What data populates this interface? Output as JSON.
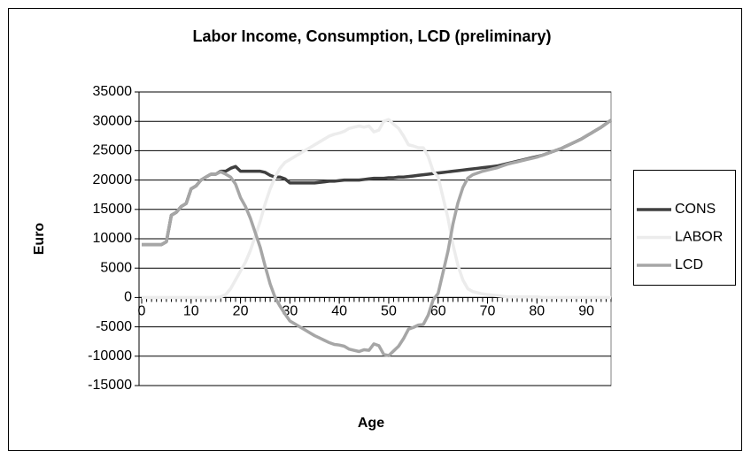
{
  "chart_data": {
    "type": "line",
    "title": "Labor Income, Consumption, LCD (preliminary)",
    "x_label": "Age",
    "y_label": "Euro",
    "x": [
      0,
      1,
      2,
      3,
      4,
      5,
      6,
      7,
      8,
      9,
      10,
      11,
      12,
      13,
      14,
      15,
      16,
      17,
      18,
      19,
      20,
      21,
      22,
      23,
      24,
      25,
      26,
      27,
      28,
      29,
      30,
      31,
      32,
      33,
      34,
      35,
      36,
      37,
      38,
      39,
      40,
      41,
      42,
      43,
      44,
      45,
      46,
      47,
      48,
      49,
      50,
      51,
      52,
      53,
      54,
      55,
      56,
      57,
      58,
      59,
      60,
      61,
      62,
      63,
      64,
      65,
      66,
      67,
      68,
      69,
      70,
      71,
      72,
      73,
      74,
      75,
      76,
      77,
      78,
      79,
      80,
      81,
      82,
      83,
      84,
      85,
      86,
      87,
      88,
      89,
      90,
      91,
      92,
      93,
      94,
      95
    ],
    "xlim": [
      0,
      95
    ],
    "xticks": [
      0,
      10,
      20,
      30,
      40,
      50,
      60,
      70,
      80,
      90
    ],
    "ylim": [
      -15000,
      35000
    ],
    "yticks": [
      -15000,
      -10000,
      -5000,
      0,
      5000,
      10000,
      15000,
      20000,
      25000,
      30000,
      35000
    ],
    "grid": true,
    "legend": "right",
    "series": [
      {
        "name": "CONS",
        "color": "#404040",
        "values": [
          9000,
          9000,
          9000,
          9000,
          9000,
          9500,
          14000,
          14500,
          15500,
          16000,
          18500,
          19000,
          20000,
          20500,
          21000,
          21000,
          21500,
          21500,
          22000,
          22300,
          21500,
          21500,
          21500,
          21500,
          21500,
          21300,
          20800,
          20500,
          20500,
          20200,
          19500,
          19500,
          19500,
          19500,
          19500,
          19500,
          19600,
          19700,
          19800,
          19800,
          19900,
          20000,
          20000,
          20000,
          20000,
          20100,
          20200,
          20300,
          20300,
          20300,
          20400,
          20400,
          20500,
          20500,
          20600,
          20700,
          20800,
          20900,
          21000,
          21100,
          21200,
          21300,
          21400,
          21500,
          21600,
          21700,
          21800,
          21900,
          22000,
          22100,
          22200,
          22300,
          22400,
          22600,
          22800,
          23000,
          23200,
          23400,
          23600,
          23800,
          24000,
          24200,
          24500,
          24800,
          25100,
          25400,
          25800,
          26200,
          26600,
          27000,
          27500,
          28000,
          28500,
          29000,
          29600,
          30200
        ]
      },
      {
        "name": "LABOR",
        "color": "#ececec",
        "values": [
          0,
          0,
          0,
          0,
          0,
          0,
          0,
          0,
          0,
          0,
          0,
          0,
          0,
          0,
          0,
          0,
          100,
          500,
          1500,
          3000,
          4500,
          6000,
          8000,
          10500,
          13000,
          16000,
          18500,
          20500,
          22000,
          23000,
          23500,
          24000,
          24500,
          25000,
          25500,
          26000,
          26500,
          27000,
          27500,
          27800,
          28000,
          28300,
          28800,
          29000,
          29200,
          29000,
          29200,
          28200,
          28500,
          30000,
          30300,
          29500,
          28800,
          27500,
          26000,
          25800,
          25500,
          25500,
          24000,
          21500,
          20500,
          17000,
          13500,
          9000,
          5500,
          3000,
          1500,
          1000,
          800,
          600,
          500,
          400,
          300,
          200,
          100,
          100,
          100,
          100,
          100,
          100,
          100,
          0,
          0,
          0,
          0,
          0,
          0,
          0,
          0,
          0,
          0,
          0,
          0,
          0,
          0,
          0
        ]
      },
      {
        "name": "LCD",
        "color": "#a6a6a6",
        "values": [
          9000,
          9000,
          9000,
          9000,
          9000,
          9500,
          14000,
          14500,
          15500,
          16000,
          18500,
          19000,
          20000,
          20500,
          21000,
          21000,
          21400,
          21000,
          20500,
          19300,
          17000,
          15500,
          13500,
          11000,
          8500,
          5300,
          2300,
          0,
          -1500,
          -2800,
          -4000,
          -4500,
          -5000,
          -5500,
          -6000,
          -6500,
          -6900,
          -7300,
          -7700,
          -8000,
          -8100,
          -8300,
          -8800,
          -9000,
          -9200,
          -8900,
          -9000,
          -7900,
          -8200,
          -9700,
          -9900,
          -9100,
          -8300,
          -7000,
          -5400,
          -5100,
          -4700,
          -4600,
          -3000,
          -400,
          700,
          4300,
          7900,
          12500,
          16100,
          18700,
          20300,
          20900,
          21200,
          21500,
          21700,
          21900,
          22100,
          22400,
          22700,
          22900,
          23100,
          23300,
          23500,
          23700,
          23900,
          24200,
          24500,
          24800,
          25100,
          25400,
          25800,
          26200,
          26600,
          27000,
          27500,
          28000,
          28500,
          29000,
          29600,
          30200
        ]
      }
    ]
  }
}
